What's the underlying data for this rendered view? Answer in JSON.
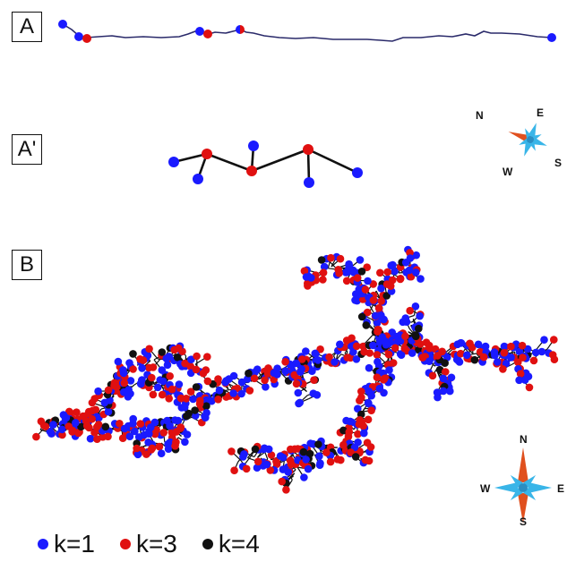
{
  "panels": {
    "a_label": "A",
    "a_prime_label": "A'",
    "b_label": "B"
  },
  "legend": [
    {
      "label": "k=1",
      "color": "#1a1aff"
    },
    {
      "label": "k=3",
      "color": "#e01010"
    },
    {
      "label": "k=4",
      "color": "#111111"
    }
  ],
  "compass_small": {
    "n": "N",
    "e": "E",
    "s": "S",
    "w": "W"
  },
  "compass_large": {
    "n": "N",
    "e": "E",
    "s": "S",
    "w": "W"
  },
  "colors": {
    "k1": "#1a1aff",
    "k3": "#e01010",
    "k4": "#111111",
    "path": "#2a2a6a",
    "compass_blue": "#39b5e8",
    "compass_red": "#e0501e"
  }
}
